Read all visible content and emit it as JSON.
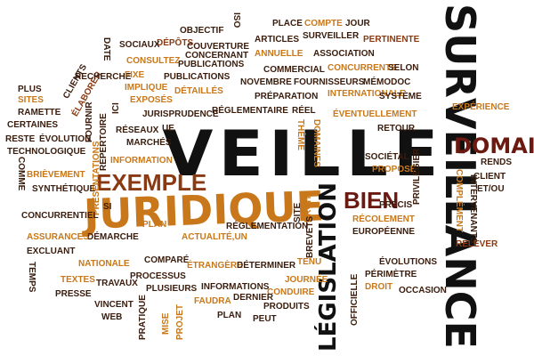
{
  "palette": {
    "dark_brown": "#3a1c0c",
    "black": "#111111",
    "rust": "#8a3a12",
    "orange": "#c8781a",
    "gold": "#d8a020",
    "maroon": "#6a1a10"
  },
  "words": [
    {
      "text": "VEILLE",
      "color": "black"
    },
    {
      "text": "JURIDIQUE",
      "color": "orange"
    },
    {
      "text": "SURVEILLANCE",
      "color": "black"
    },
    {
      "text": "LÉGISLATION",
      "color": "black"
    },
    {
      "text": "DOMAINE",
      "color": "maroon"
    },
    {
      "text": "EXEMPLE",
      "color": "rust"
    },
    {
      "text": "BIEN",
      "color": "maroon"
    },
    {
      "text": "OBJECTIF",
      "color": "dark_brown"
    },
    {
      "text": "ISO",
      "color": "dark_brown"
    },
    {
      "text": "PLACE",
      "color": "dark_brown"
    },
    {
      "text": "COMPTE",
      "color": "orange"
    },
    {
      "text": "JOUR",
      "color": "dark_brown"
    },
    {
      "text": "DÉPÔTS",
      "color": "rust"
    },
    {
      "text": "SOCIAUX",
      "color": "dark_brown"
    },
    {
      "text": "DATE",
      "color": "dark_brown"
    },
    {
      "text": "COUVERTURE",
      "color": "dark_brown"
    },
    {
      "text": "ARTICLES",
      "color": "dark_brown"
    },
    {
      "text": "SURVEILLER",
      "color": "dark_brown"
    },
    {
      "text": "PERTINENTE",
      "color": "rust"
    },
    {
      "text": "CONSULTEZ",
      "color": "orange"
    },
    {
      "text": "PUBLICATIONS",
      "color": "dark_brown"
    },
    {
      "text": "CONCERNANT",
      "color": "dark_brown"
    },
    {
      "text": "ANNUELLE",
      "color": "orange"
    },
    {
      "text": "ASSOCIATION",
      "color": "dark_brown"
    },
    {
      "text": "CONCURRENTS",
      "color": "orange"
    },
    {
      "text": "SELON",
      "color": "dark_brown"
    },
    {
      "text": "COMMERCIAL",
      "color": "dark_brown"
    },
    {
      "text": "NOVEMBRE",
      "color": "dark_brown"
    },
    {
      "text": "FOURNISSEURS",
      "color": "dark_brown"
    },
    {
      "text": "MÉMODOC",
      "color": "dark_brown"
    },
    {
      "text": "INTERNATIONALE",
      "color": "orange"
    },
    {
      "text": "SYSTÈME",
      "color": "dark_brown"
    },
    {
      "text": "CLIENTS",
      "color": "dark_brown"
    },
    {
      "text": "ÉLABORER",
      "color": "rust"
    },
    {
      "text": "RECHERCHE",
      "color": "dark_brown"
    },
    {
      "text": "FIXE",
      "color": "orange"
    },
    {
      "text": "PUBLICATIONS",
      "color": "dark_brown"
    },
    {
      "text": "PLUS",
      "color": "dark_brown"
    },
    {
      "text": "SITES",
      "color": "orange"
    },
    {
      "text": "IMPLIQUE",
      "color": "orange"
    },
    {
      "text": "PRÉPARATION",
      "color": "dark_brown"
    },
    {
      "text": "RAMETTE",
      "color": "dark_brown"
    },
    {
      "text": "FOURNIR",
      "color": "dark_brown"
    },
    {
      "text": "CERTAINES",
      "color": "dark_brown"
    },
    {
      "text": "ICI",
      "color": "dark_brown"
    },
    {
      "text": "EXPOSÉS",
      "color": "orange"
    },
    {
      "text": "DÉTAILLÉS",
      "color": "orange"
    },
    {
      "text": "EXPÉRIENCE",
      "color": "orange"
    },
    {
      "text": "ÉVENTUELLEMENT",
      "color": "orange"
    },
    {
      "text": "RÉGLEMENTAIRE",
      "color": "dark_brown"
    },
    {
      "text": "RÉEL",
      "color": "dark_brown"
    },
    {
      "text": "RETOUR",
      "color": "dark_brown"
    },
    {
      "text": "RESTE",
      "color": "dark_brown"
    },
    {
      "text": "ÉVOLUTION",
      "color": "dark_brown"
    },
    {
      "text": "JURISPRUDENCE",
      "color": "dark_brown"
    },
    {
      "text": "UE",
      "color": "dark_brown"
    },
    {
      "text": "TECHNOLOGIQUE",
      "color": "dark_brown"
    },
    {
      "text": "RÉPERTOIRE",
      "color": "dark_brown"
    },
    {
      "text": "MARCHÉS",
      "color": "dark_brown"
    },
    {
      "text": "RÉSEAUX",
      "color": "dark_brown"
    },
    {
      "text": "THÈME",
      "color": "orange"
    },
    {
      "text": "DOMAINES",
      "color": "orange"
    },
    {
      "text": "SOCIÉTAL",
      "color": "dark_brown"
    },
    {
      "text": "RENDS",
      "color": "dark_brown"
    },
    {
      "text": "INFORMATION",
      "color": "orange"
    },
    {
      "text": "PROPOSÉ",
      "color": "orange"
    },
    {
      "text": "PRIVILÉGIER",
      "color": "dark_brown"
    },
    {
      "text": "BRIÈVEMENT",
      "color": "orange"
    },
    {
      "text": "COMME",
      "color": "dark_brown"
    },
    {
      "text": "SYNTHÉTIQUE",
      "color": "dark_brown"
    },
    {
      "text": "PRÉSENTATIONS",
      "color": "orange"
    },
    {
      "text": "CLIENT",
      "color": "dark_brown"
    },
    {
      "text": "ET/OU",
      "color": "dark_brown"
    },
    {
      "text": "PRÉCIS",
      "color": "dark_brown"
    },
    {
      "text": "SITE",
      "color": "dark_brown"
    },
    {
      "text": "DROIT",
      "color": "orange"
    },
    {
      "text": "COMPLÉMENT",
      "color": "orange"
    },
    {
      "text": "INTERVENANTS",
      "color": "dark_brown"
    },
    {
      "text": "CONCURRENTIEL",
      "color": "dark_brown"
    },
    {
      "text": "SI",
      "color": "dark_brown"
    },
    {
      "text": "RÉCOLEMENT",
      "color": "orange"
    },
    {
      "text": "EUROPÉENNE",
      "color": "dark_brown"
    },
    {
      "text": "BREVETS",
      "color": "dark_brown"
    },
    {
      "text": "DÉMARCHE",
      "color": "dark_brown"
    },
    {
      "text": "PLAN",
      "color": "orange"
    },
    {
      "text": "ACTUALITÉ,UN",
      "color": "orange"
    },
    {
      "text": "RÉGLEMENTATION",
      "color": "dark_brown"
    },
    {
      "text": "RELEVER",
      "color": "rust"
    },
    {
      "text": "ASSURANCES",
      "color": "orange"
    },
    {
      "text": "EXCLUANT",
      "color": "dark_brown"
    },
    {
      "text": "NATIONALE",
      "color": "orange"
    },
    {
      "text": "COMPARÉ",
      "color": "dark_brown"
    },
    {
      "text": "ÉTRANGÈRE",
      "color": "orange"
    },
    {
      "text": "DÉTERMINER",
      "color": "dark_brown"
    },
    {
      "text": "TENU",
      "color": "orange"
    },
    {
      "text": "ÉVOLUTIONS",
      "color": "dark_brown"
    },
    {
      "text": "TEMPS",
      "color": "dark_brown"
    },
    {
      "text": "TEXTES",
      "color": "orange"
    },
    {
      "text": "TRAVAUX",
      "color": "dark_brown"
    },
    {
      "text": "PROCESSUS",
      "color": "dark_brown"
    },
    {
      "text": "INFORMATIONS",
      "color": "dark_brown"
    },
    {
      "text": "JOURNÉE",
      "color": "orange"
    },
    {
      "text": "PÉRIMÈTRE",
      "color": "dark_brown"
    },
    {
      "text": "PLUSIEURS",
      "color": "dark_brown"
    },
    {
      "text": "CONDUIRE",
      "color": "orange"
    },
    {
      "text": "DROIT",
      "color": "orange"
    },
    {
      "text": "OCCASION",
      "color": "dark_brown"
    },
    {
      "text": "PRESSE",
      "color": "dark_brown"
    },
    {
      "text": "VINCENT",
      "color": "dark_brown"
    },
    {
      "text": "FAUDRA",
      "color": "orange"
    },
    {
      "text": "DERNIER",
      "color": "dark_brown"
    },
    {
      "text": "PRODUITS",
      "color": "dark_brown"
    },
    {
      "text": "OFFICIELLE",
      "color": "dark_brown"
    },
    {
      "text": "WEB",
      "color": "dark_brown"
    },
    {
      "text": "PRATIQUE",
      "color": "dark_brown"
    },
    {
      "text": "MISE",
      "color": "orange"
    },
    {
      "text": "PROJET",
      "color": "orange"
    },
    {
      "text": "PLAN",
      "color": "dark_brown"
    },
    {
      "text": "PEUT",
      "color": "dark_brown"
    }
  ]
}
